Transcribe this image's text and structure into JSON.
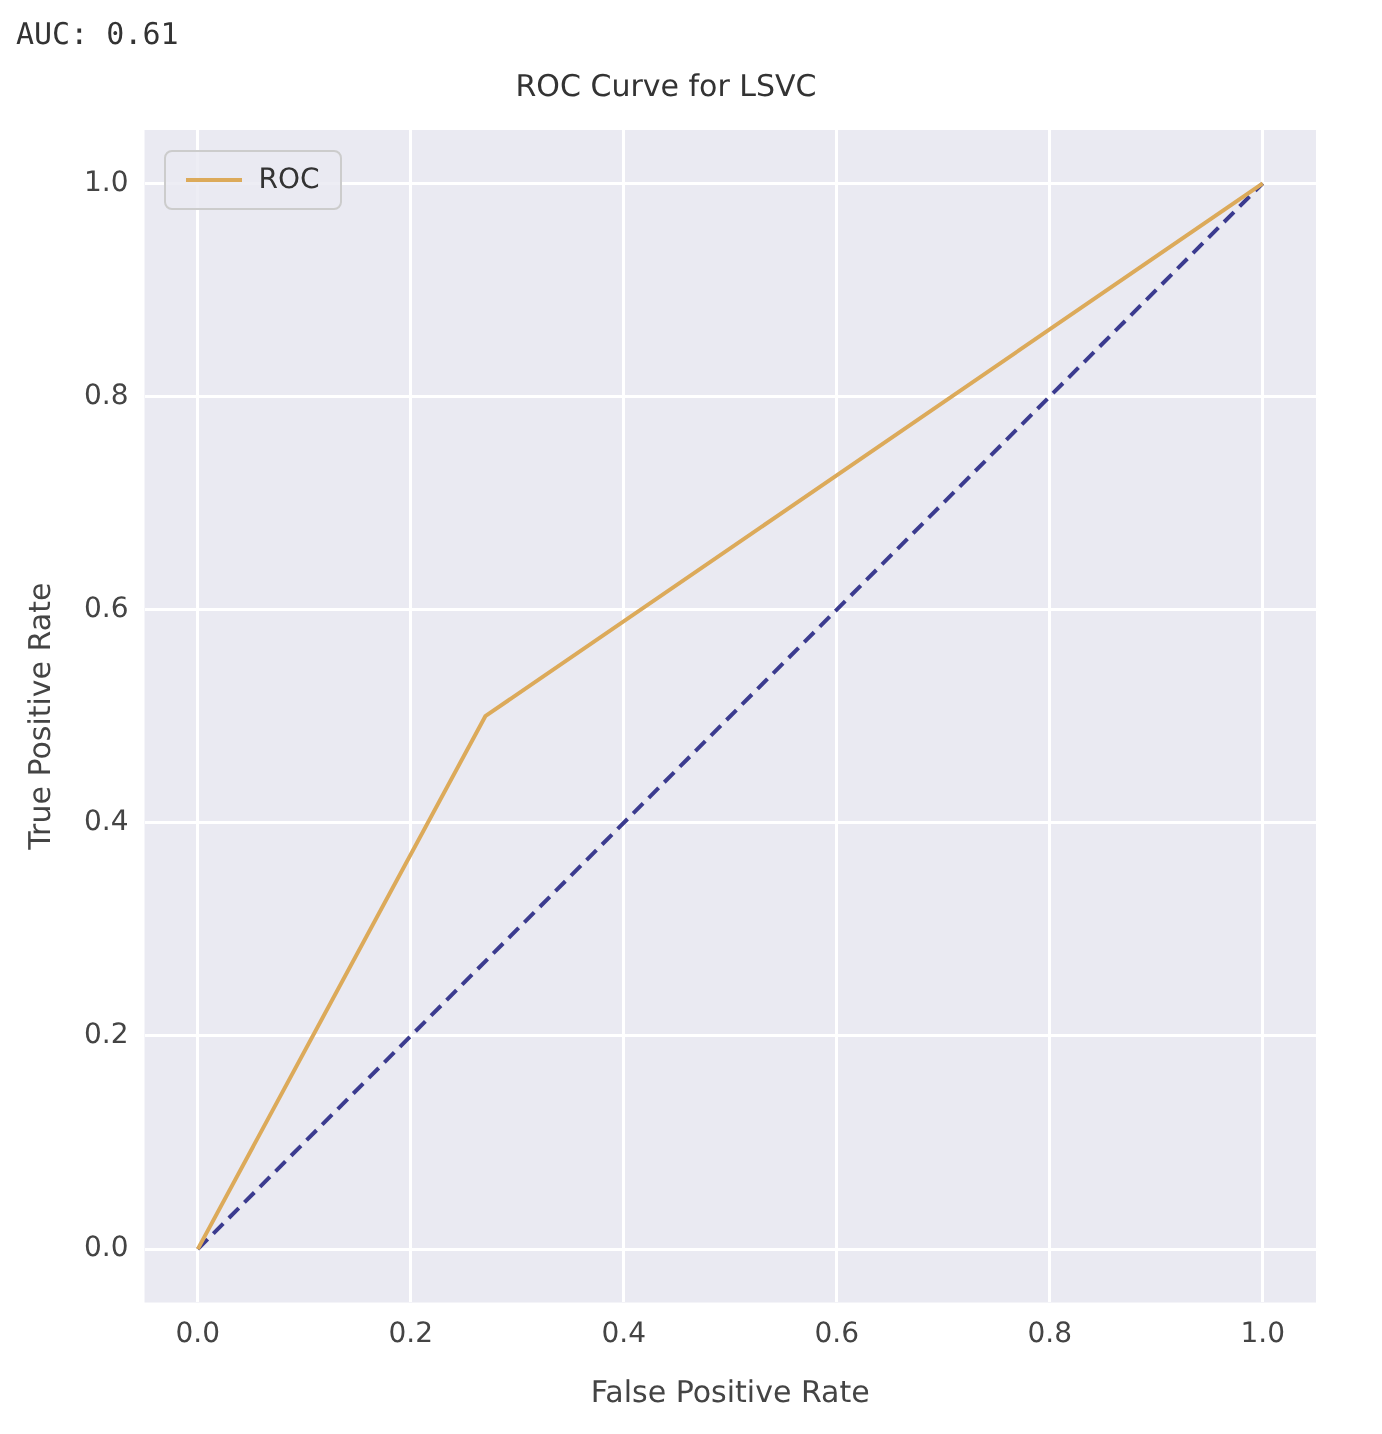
{
  "chart_data": {
    "type": "line",
    "title": "ROC Curve for LSVC",
    "xlabel": "False Positive Rate",
    "ylabel": "True Positive Rate",
    "annotations": [
      "AUC: 0.61"
    ],
    "series": [
      {
        "name": "ROC",
        "color": "#dcaa5a",
        "x": [
          0,
          0.27,
          1
        ],
        "values": [
          0,
          0.5,
          1
        ],
        "line_style": "solid"
      },
      {
        "color": "#3b3b8f",
        "x": [
          0,
          1
        ],
        "values": [
          0,
          1
        ],
        "line_style": "dashed"
      }
    ],
    "xlim": [
      -0.05,
      1.05
    ],
    "ylim": [
      -0.05,
      1.05
    ],
    "xticks": [
      {
        "value": 0,
        "label": "0.0"
      },
      {
        "value": 0.2,
        "label": "0.2"
      },
      {
        "value": 0.4,
        "label": "0.4"
      },
      {
        "value": 0.6,
        "label": "0.6"
      },
      {
        "value": 0.8,
        "label": "0.8"
      },
      {
        "value": 1,
        "label": "1.0"
      }
    ],
    "yticks": [
      {
        "value": 0,
        "label": "0.0"
      },
      {
        "value": 0.2,
        "label": "0.2"
      },
      {
        "value": 0.4,
        "label": "0.4"
      },
      {
        "value": 0.6,
        "label": "0.6"
      },
      {
        "value": 0.8,
        "label": "0.8"
      },
      {
        "value": 1,
        "label": "1.0"
      }
    ],
    "grid": true,
    "legend": "top left",
    "marker": "none"
  }
}
